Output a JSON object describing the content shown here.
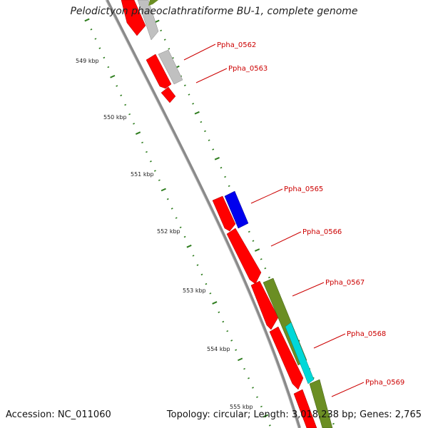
{
  "title": "Pelodictyon phaeoclathratiforme BU-1, complete genome",
  "footer": {
    "accession": "Accession: NC_011060",
    "summary": "Topology: circular; Length: 3,018,238 bp; Genes: 2,765"
  },
  "colors": {
    "backbone": "#8a8a8a",
    "cds_red": "#ff0000",
    "cds_gray": "#c0c0c0",
    "cds_blue": "#0000ee",
    "cds_olive": "#6b8e23",
    "cds_cyan": "#00d8d8",
    "tick": "#2e7d1e",
    "label": "#cc0000"
  },
  "scale_ticks": [
    {
      "label": "549 kbp"
    },
    {
      "label": "550 kbp"
    },
    {
      "label": "551 kbp"
    },
    {
      "label": "552 kbp"
    },
    {
      "label": "553 kbp"
    },
    {
      "label": "554 kbp"
    },
    {
      "label": "555 kbp"
    }
  ],
  "gene_labels": [
    {
      "text": "Ppha_0562"
    },
    {
      "text": "Ppha_0563"
    },
    {
      "text": "Ppha_0565"
    },
    {
      "text": "Ppha_0566"
    },
    {
      "text": "Ppha_0567"
    },
    {
      "text": "Ppha_0568"
    },
    {
      "text": "Ppha_0569"
    }
  ]
}
